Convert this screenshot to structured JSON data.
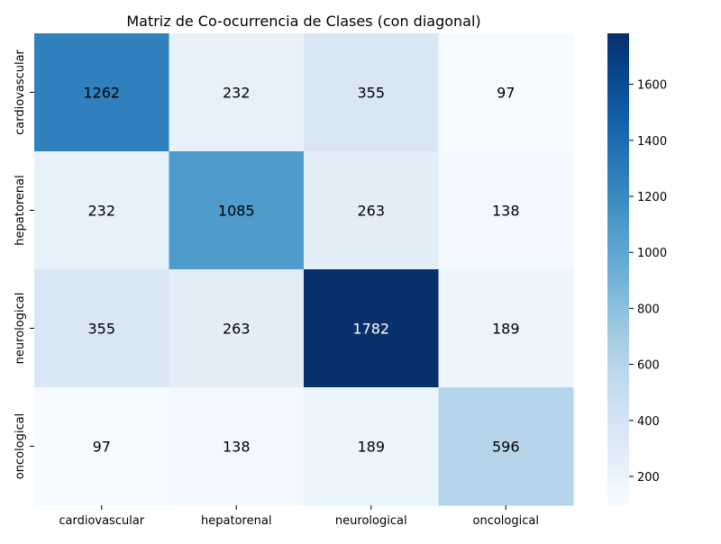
{
  "chart_data": {
    "type": "heatmap",
    "title": "Matriz de Co-ocurrencia de Clases (con diagonal)",
    "xlabel": "",
    "ylabel": "",
    "row_labels": [
      "cardiovascular",
      "hepatorenal",
      "neurological",
      "oncological"
    ],
    "col_labels": [
      "cardiovascular",
      "hepatorenal",
      "neurological",
      "oncological"
    ],
    "values": [
      [
        1262,
        232,
        355,
        97
      ],
      [
        232,
        1085,
        263,
        138
      ],
      [
        355,
        263,
        1782,
        189
      ],
      [
        97,
        138,
        189,
        596
      ]
    ],
    "colormap": "Blues",
    "color_range": [
      97,
      1782
    ],
    "colorbar_ticks": [
      200,
      400,
      600,
      800,
      1000,
      1200,
      1400,
      1600
    ],
    "annotation_threshold_color_light": "#ffffff",
    "annotation_color_dark": "#000000"
  }
}
